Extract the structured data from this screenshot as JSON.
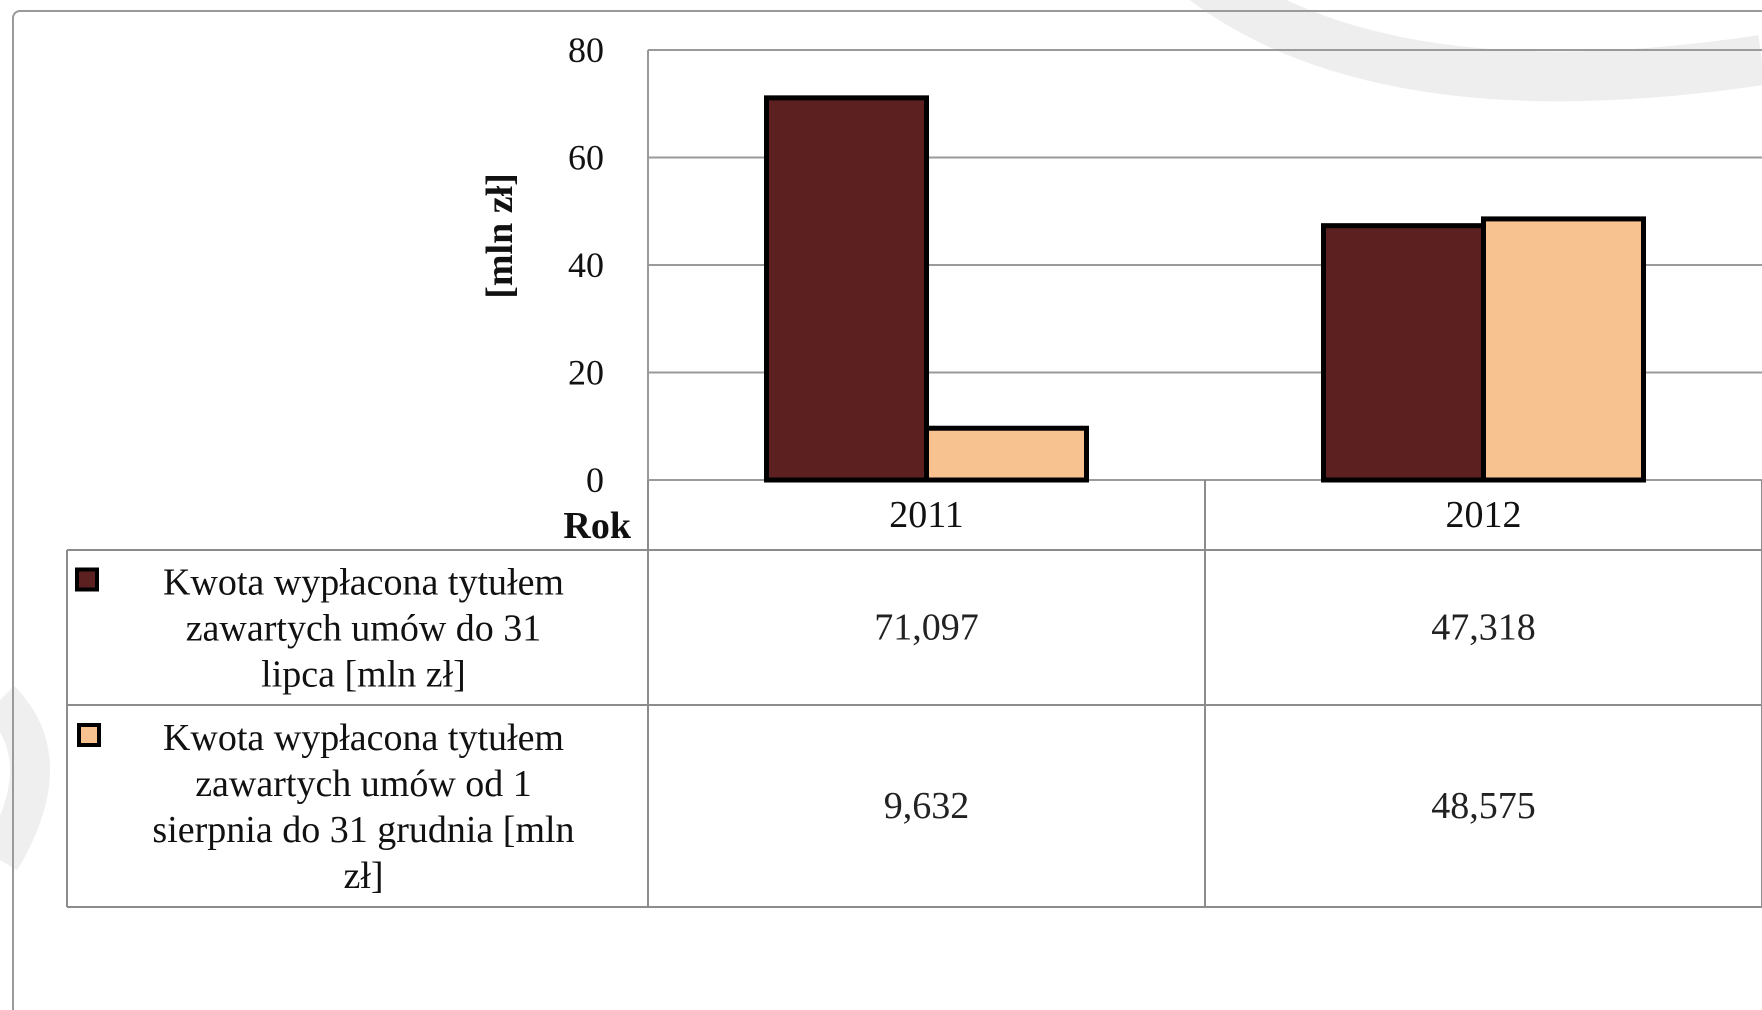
{
  "colors": {
    "series1": "#5c2020",
    "series2": "#f8c190",
    "bar_stroke": "#000000",
    "grid": "#9a9a9a",
    "table_line": "#8c8c8c"
  },
  "chart_data": {
    "type": "bar",
    "categories": [
      "2011",
      "2012"
    ],
    "series": [
      {
        "name_lines": [
          "Kwota wypłacona tytułem",
          "zawartych umów do 31",
          "lipca [mln zł]"
        ],
        "values": [
          71.097,
          47.318
        ],
        "labels": [
          "71,097",
          "47,318"
        ]
      },
      {
        "name_lines": [
          "Kwota wypłacona tytułem",
          "zawartych umów od 1",
          "sierpnia do 31 grudnia [mln",
          "zł]"
        ],
        "values": [
          9.632,
          48.575
        ],
        "labels": [
          "9,632",
          "48,575"
        ]
      }
    ],
    "ylabel": "[mln zł]",
    "xlabel": "Rok",
    "ylim": [
      0,
      80
    ],
    "yticks": [
      0,
      20,
      40,
      60,
      80
    ],
    "grid": true,
    "legend": "data-table"
  }
}
